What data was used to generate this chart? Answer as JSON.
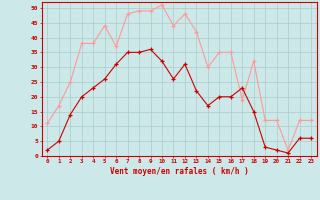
{
  "x": [
    0,
    1,
    2,
    3,
    4,
    5,
    6,
    7,
    8,
    9,
    10,
    11,
    12,
    13,
    14,
    15,
    16,
    17,
    18,
    19,
    20,
    21,
    22,
    23
  ],
  "wind_avg": [
    2,
    5,
    14,
    20,
    23,
    26,
    31,
    35,
    35,
    36,
    32,
    26,
    31,
    22,
    17,
    20,
    20,
    23,
    15,
    3,
    2,
    1,
    6,
    6
  ],
  "wind_gust": [
    11,
    17,
    25,
    38,
    38,
    44,
    37,
    48,
    49,
    49,
    51,
    44,
    48,
    42,
    30,
    35,
    35,
    19,
    32,
    12,
    12,
    2,
    12,
    12
  ],
  "avg_color": "#cc0000",
  "gust_color": "#ff9999",
  "bg_color": "#cce8e8",
  "grid_color": "#aacccc",
  "xlabel": "Vent moyen/en rafales ( km/h )",
  "ylabel_ticks": [
    0,
    5,
    10,
    15,
    20,
    25,
    30,
    35,
    40,
    45,
    50
  ],
  "ylim": [
    0,
    52
  ],
  "xlim": [
    -0.5,
    23.5
  ]
}
